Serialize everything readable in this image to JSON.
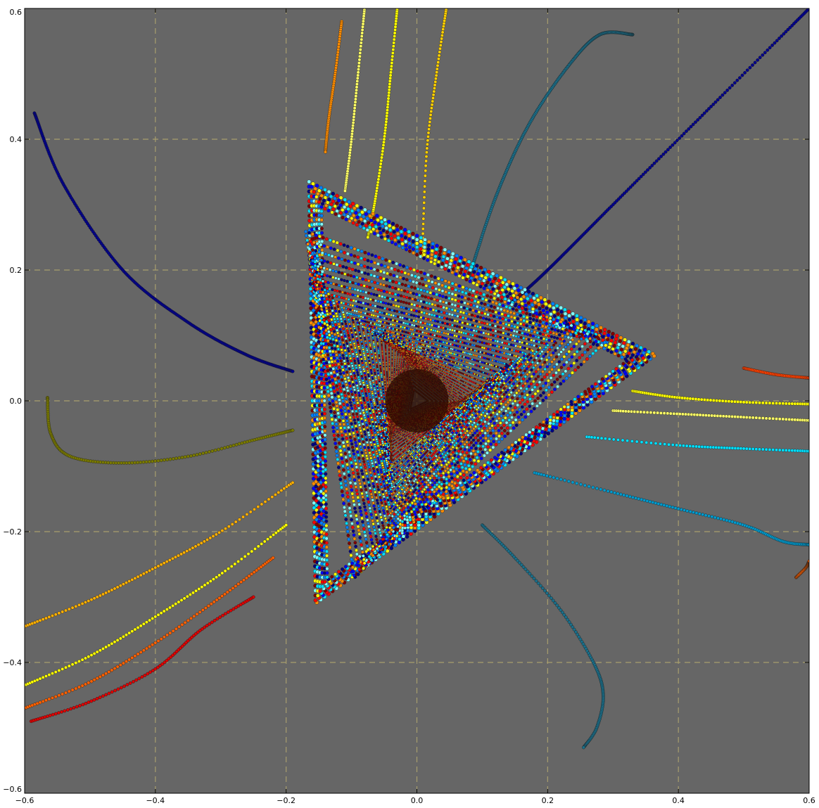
{
  "chart_data": {
    "type": "scatter",
    "title": "",
    "xlabel": "",
    "ylabel": "",
    "xlim": [
      -0.6,
      0.6
    ],
    "ylim": [
      -0.6,
      0.6
    ],
    "xticks": [
      -0.6,
      -0.4,
      -0.2,
      0.0,
      0.2,
      0.4,
      0.6
    ],
    "yticks": [
      -0.6,
      -0.4,
      -0.2,
      0.0,
      0.2,
      0.4,
      0.6
    ],
    "xtick_labels": [
      "−0.6",
      "−0.4",
      "−0.2",
      "0.0",
      "0.2",
      "0.4",
      "0.6"
    ],
    "ytick_labels": [
      "−0.6",
      "−0.4",
      "−0.2",
      "0.0",
      "0.2",
      "0.4",
      "0.6"
    ],
    "grid": true,
    "legend": "none",
    "background_color": "#666666",
    "grid_color": "#a89e6e",
    "colormap": [
      "#00007f",
      "#0000ff",
      "#007fff",
      "#00e0ff",
      "#7fffff",
      "#ffff00",
      "#ff8c00",
      "#ff0000",
      "#7f0000"
    ],
    "attractor": {
      "vertices": [
        [
          -0.165,
          0.335
        ],
        [
          0.365,
          0.07
        ],
        [
          -0.155,
          -0.31
        ]
      ],
      "center": [
        0.0,
        0.0
      ]
    },
    "series": [
      {
        "points": [
          [
            -0.585,
            0.44
          ],
          [
            -0.54,
            0.33
          ],
          [
            -0.45,
            0.2
          ],
          [
            -0.35,
            0.12
          ],
          [
            -0.26,
            0.07
          ],
          [
            -0.19,
            0.045
          ]
        ],
        "color": "#00008b"
      },
      {
        "points": [
          [
            0.6,
            0.6
          ],
          [
            0.45,
            0.45
          ],
          [
            0.3,
            0.3
          ],
          [
            0.2,
            0.2
          ],
          [
            0.145,
            0.15
          ]
        ],
        "color": "#00008b"
      },
      {
        "points": [
          [
            0.33,
            0.56
          ],
          [
            0.28,
            0.56
          ],
          [
            0.23,
            0.51
          ],
          [
            0.17,
            0.42
          ],
          [
            0.12,
            0.31
          ],
          [
            0.08,
            0.19
          ]
        ],
        "color": "#1a6f8a"
      },
      {
        "points": [
          [
            0.045,
            0.6
          ],
          [
            0.03,
            0.5
          ],
          [
            0.015,
            0.38
          ],
          [
            0.008,
            0.22
          ]
        ],
        "color": "#ffd000"
      },
      {
        "points": [
          [
            -0.03,
            0.6
          ],
          [
            -0.04,
            0.5
          ],
          [
            -0.05,
            0.4
          ],
          [
            -0.065,
            0.3
          ],
          [
            -0.075,
            0.25
          ]
        ],
        "color": "#ffff00"
      },
      {
        "points": [
          [
            -0.08,
            0.6
          ],
          [
            -0.09,
            0.5
          ],
          [
            -0.1,
            0.4
          ],
          [
            -0.11,
            0.32
          ]
        ],
        "color": "#ffff66"
      },
      {
        "points": [
          [
            -0.115,
            0.58
          ],
          [
            -0.125,
            0.5
          ],
          [
            -0.135,
            0.43
          ],
          [
            -0.14,
            0.38
          ]
        ],
        "color": "#ff8c00"
      },
      {
        "points": [
          [
            -0.565,
            0.005
          ],
          [
            -0.56,
            -0.05
          ],
          [
            -0.53,
            -0.085
          ],
          [
            -0.45,
            -0.095
          ],
          [
            -0.35,
            -0.085
          ],
          [
            -0.25,
            -0.06
          ],
          [
            -0.19,
            -0.045
          ]
        ],
        "color": "#7a7a00"
      },
      {
        "points": [
          [
            -0.6,
            -0.345
          ],
          [
            -0.5,
            -0.305
          ],
          [
            -0.4,
            -0.255
          ],
          [
            -0.3,
            -0.2
          ],
          [
            -0.19,
            -0.125
          ]
        ],
        "color": "#ffb000"
      },
      {
        "points": [
          [
            -0.6,
            -0.435
          ],
          [
            -0.5,
            -0.39
          ],
          [
            -0.4,
            -0.33
          ],
          [
            -0.3,
            -0.265
          ],
          [
            -0.2,
            -0.19
          ]
        ],
        "color": "#ffff00"
      },
      {
        "points": [
          [
            -0.6,
            -0.47
          ],
          [
            -0.5,
            -0.43
          ],
          [
            -0.4,
            -0.37
          ],
          [
            -0.3,
            -0.3
          ],
          [
            -0.22,
            -0.24
          ]
        ],
        "color": "#ff6000"
      },
      {
        "points": [
          [
            -0.59,
            -0.49
          ],
          [
            -0.5,
            -0.46
          ],
          [
            -0.4,
            -0.41
          ],
          [
            -0.33,
            -0.35
          ],
          [
            -0.25,
            -0.3
          ]
        ],
        "color": "#dd0000"
      },
      {
        "points": [
          [
            0.33,
            0.015
          ],
          [
            0.4,
            0.005
          ],
          [
            0.5,
            -0.002
          ],
          [
            0.6,
            -0.005
          ]
        ],
        "color": "#ffff00"
      },
      {
        "points": [
          [
            0.3,
            -0.015
          ],
          [
            0.4,
            -0.02
          ],
          [
            0.5,
            -0.025
          ],
          [
            0.6,
            -0.03
          ]
        ],
        "color": "#ffff66"
      },
      {
        "points": [
          [
            0.26,
            -0.055
          ],
          [
            0.4,
            -0.068
          ],
          [
            0.5,
            -0.073
          ],
          [
            0.6,
            -0.077
          ]
        ],
        "color": "#00e0ff"
      },
      {
        "points": [
          [
            0.5,
            0.05
          ],
          [
            0.55,
            0.04
          ],
          [
            0.6,
            0.035
          ]
        ],
        "color": "#ff4000"
      },
      {
        "points": [
          [
            0.18,
            -0.11
          ],
          [
            0.3,
            -0.14
          ],
          [
            0.4,
            -0.165
          ],
          [
            0.5,
            -0.19
          ],
          [
            0.56,
            -0.215
          ],
          [
            0.6,
            -0.22
          ]
        ],
        "color": "#0099cc"
      },
      {
        "points": [
          [
            0.58,
            -0.27
          ],
          [
            0.595,
            -0.255
          ],
          [
            0.6,
            -0.245
          ]
        ],
        "color": "#ff6000"
      },
      {
        "points": [
          [
            0.1,
            -0.19
          ],
          [
            0.15,
            -0.24
          ],
          [
            0.22,
            -0.32
          ],
          [
            0.27,
            -0.4
          ],
          [
            0.285,
            -0.45
          ],
          [
            0.275,
            -0.5
          ],
          [
            0.255,
            -0.53
          ]
        ],
        "color": "#1a6f8a"
      }
    ]
  }
}
